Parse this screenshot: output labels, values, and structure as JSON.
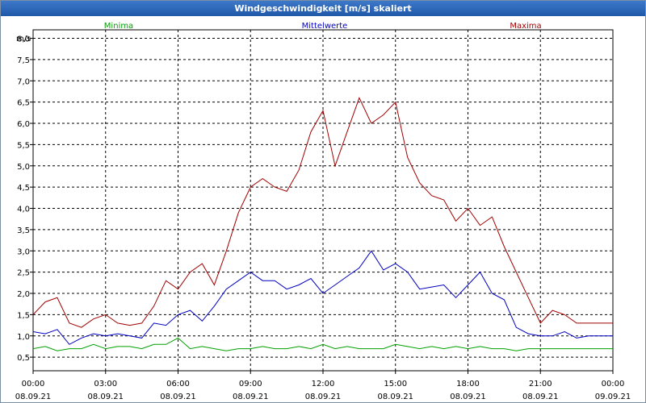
{
  "window": {
    "title": "Windgeschwindigkeit [m/s] skaliert"
  },
  "chart_data": {
    "type": "line",
    "title": "Windgeschwindigkeit [m/s] skaliert",
    "ylabel": "m/s",
    "ylim": [
      0.18,
      8.2
    ],
    "xlim": [
      "2021-09-08 00:00",
      "2021-09-09 00:00"
    ],
    "grid": true,
    "yticks": [
      "0,5",
      "1,0",
      "1,5",
      "2,0",
      "2,5",
      "3,0",
      "3,5",
      "4,0",
      "4,5",
      "5,0",
      "5,5",
      "6,0",
      "6,5",
      "7,0",
      "7,5",
      "8,0"
    ],
    "ytick_values": [
      0.5,
      1.0,
      1.5,
      2.0,
      2.5,
      3.0,
      3.5,
      4.0,
      4.5,
      5.0,
      5.5,
      6.0,
      6.5,
      7.0,
      7.5,
      8.0
    ],
    "xticks": [
      {
        "time": "00:00",
        "date": "08.09.21"
      },
      {
        "time": "03:00",
        "date": "08.09.21"
      },
      {
        "time": "06:00",
        "date": "08.09.21"
      },
      {
        "time": "09:00",
        "date": "08.09.21"
      },
      {
        "time": "12:00",
        "date": "08.09.21"
      },
      {
        "time": "15:00",
        "date": "08.09.21"
      },
      {
        "time": "18:00",
        "date": "08.09.21"
      },
      {
        "time": "21:00",
        "date": "08.09.21"
      },
      {
        "time": "00:00",
        "date": "09.09.21"
      }
    ],
    "x_hours": [
      0,
      0.5,
      1,
      1.5,
      2,
      2.5,
      3,
      3.5,
      4,
      4.5,
      5,
      5.5,
      6,
      6.5,
      7,
      7.5,
      8,
      8.5,
      9,
      9.5,
      10,
      10.5,
      11,
      11.5,
      12,
      12.5,
      13,
      13.5,
      14,
      14.5,
      15,
      15.5,
      16,
      16.5,
      17,
      17.5,
      18,
      18.5,
      19,
      19.5,
      20,
      20.5,
      21,
      21.5,
      22,
      22.5,
      23,
      23.5,
      24
    ],
    "series": [
      {
        "name": "Minima",
        "color": "#00a000",
        "values": [
          0.7,
          0.75,
          0.65,
          0.7,
          0.7,
          0.8,
          0.7,
          0.75,
          0.75,
          0.7,
          0.8,
          0.8,
          0.95,
          0.7,
          0.75,
          0.7,
          0.65,
          0.7,
          0.7,
          0.75,
          0.7,
          0.7,
          0.75,
          0.7,
          0.8,
          0.7,
          0.75,
          0.7,
          0.7,
          0.7,
          0.8,
          0.75,
          0.7,
          0.75,
          0.7,
          0.75,
          0.7,
          0.75,
          0.7,
          0.7,
          0.65,
          0.7,
          0.7,
          0.7,
          0.7,
          0.7,
          0.7,
          0.7,
          0.7
        ]
      },
      {
        "name": "Mittelwerte",
        "color": "#0000c0",
        "values": [
          1.1,
          1.05,
          1.15,
          0.8,
          0.95,
          1.05,
          1.0,
          1.05,
          1.0,
          0.95,
          1.3,
          1.25,
          1.5,
          1.6,
          1.35,
          1.7,
          2.1,
          2.3,
          2.5,
          2.3,
          2.3,
          2.1,
          2.2,
          2.35,
          2.0,
          2.2,
          2.4,
          2.6,
          3.0,
          2.55,
          2.7,
          2.5,
          2.1,
          2.15,
          2.2,
          1.9,
          2.2,
          2.5,
          2.0,
          1.85,
          1.2,
          1.05,
          1.0,
          1.0,
          1.1,
          0.95,
          1.0,
          1.0,
          1.0
        ]
      },
      {
        "name": "Maxima",
        "color": "#a00000",
        "values": [
          1.5,
          1.8,
          1.9,
          1.3,
          1.2,
          1.4,
          1.5,
          1.3,
          1.25,
          1.3,
          1.7,
          2.3,
          2.1,
          2.5,
          2.7,
          2.2,
          3.0,
          3.9,
          4.5,
          4.7,
          4.5,
          4.4,
          4.9,
          5.8,
          6.3,
          5.0,
          5.8,
          6.6,
          6.0,
          6.2,
          6.5,
          5.2,
          4.6,
          4.3,
          4.2,
          3.7,
          4.0,
          3.6,
          3.8,
          3.1,
          2.5,
          1.9,
          1.3,
          1.6,
          1.5,
          1.3,
          1.3,
          1.3,
          1.3
        ]
      }
    ]
  }
}
